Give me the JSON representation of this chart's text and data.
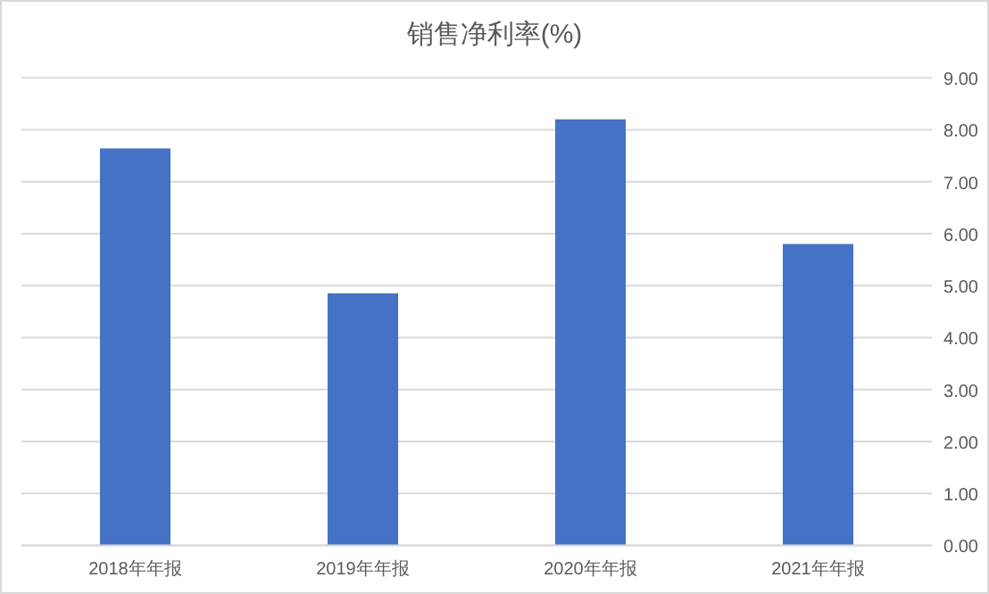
{
  "chart_data": {
    "type": "bar",
    "title": "销售净利率(%)",
    "categories": [
      "2018年年报",
      "2019年年报",
      "2020年年报",
      "2021年年报"
    ],
    "values": [
      7.64,
      4.85,
      8.2,
      5.8
    ],
    "color": "#4472c4",
    "ylim": [
      0,
      9
    ],
    "yticks": [
      {
        "value": 0,
        "label": "0.00"
      },
      {
        "value": 1,
        "label": "1.00"
      },
      {
        "value": 2,
        "label": "2.00"
      },
      {
        "value": 3,
        "label": "3.00"
      },
      {
        "value": 4,
        "label": "4.00"
      },
      {
        "value": 5,
        "label": "5.00"
      },
      {
        "value": 6,
        "label": "6.00"
      },
      {
        "value": 7,
        "label": "7.00"
      },
      {
        "value": 8,
        "label": "8.00"
      },
      {
        "value": 9,
        "label": "9.00"
      }
    ],
    "grid": "y"
  }
}
